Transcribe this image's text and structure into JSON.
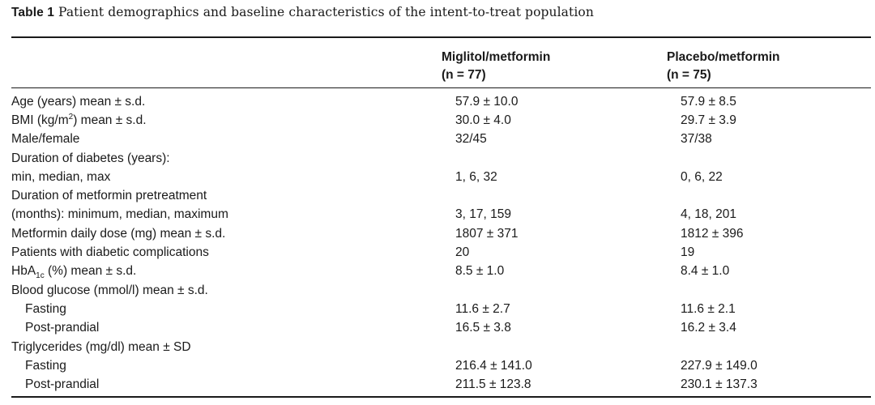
{
  "caption": {
    "label": "Table 1",
    "text": "Patient demographics and baseline characteristics of the intent-to-treat population"
  },
  "columns": [
    {
      "name": "Miglitol/metformin",
      "n": "(n = 77)"
    },
    {
      "name": "Placebo/metformin",
      "n": "(n = 75)"
    }
  ],
  "rows": [
    {
      "label": "Age (years) mean ± s.d.",
      "v1": "57.9 ± 10.0",
      "v2": "57.9 ± 8.5"
    },
    {
      "label_pre": "BMI (kg/m",
      "label_sup": "2",
      "label_post": ") mean ± s.d.",
      "v1": "30.0 ± 4.0",
      "v2": "29.7 ± 3.9"
    },
    {
      "label": "Male/female",
      "v1": "32/45",
      "v2": "37/38"
    },
    {
      "label": "Duration of diabetes (years):",
      "v1": "",
      "v2": ""
    },
    {
      "label": "min, median, max",
      "v1": "1, 6, 32",
      "v2": "0, 6, 22"
    },
    {
      "label": "Duration of metformin pretreatment",
      "v1": "",
      "v2": ""
    },
    {
      "label": "(months): minimum, median, maximum",
      "v1": "3, 17, 159",
      "v2": "4, 18, 201"
    },
    {
      "label": "Metformin daily dose (mg) mean ± s.d.",
      "v1": "1807 ± 371",
      "v2": "1812 ± 396"
    },
    {
      "label": "Patients with diabetic complications",
      "v1": "20",
      "v2": "19"
    },
    {
      "label_pre": "HbA",
      "label_sub": "1c",
      "label_post": " (%) mean ± s.d.",
      "v1": "8.5 ± 1.0",
      "v2": "8.4 ± 1.0"
    },
    {
      "label": "Blood glucose (mmol/l) mean ± s.d.",
      "v1": "",
      "v2": ""
    },
    {
      "label": "Fasting",
      "v1": "11.6 ± 2.7",
      "v2": "11.6 ± 2.1"
    },
    {
      "label": "Post-prandial",
      "v1": "16.5 ± 3.8",
      "v2": "16.2 ± 3.4"
    },
    {
      "label": "Triglycerides (mg/dl) mean ± SD",
      "v1": "",
      "v2": ""
    },
    {
      "label": "Fasting",
      "v1": "216.4 ± 141.0",
      "v2": "227.9 ± 149.0"
    },
    {
      "label": "Post-prandial",
      "v1": "211.5 ± 123.8",
      "v2": "230.1 ± 137.3"
    }
  ]
}
